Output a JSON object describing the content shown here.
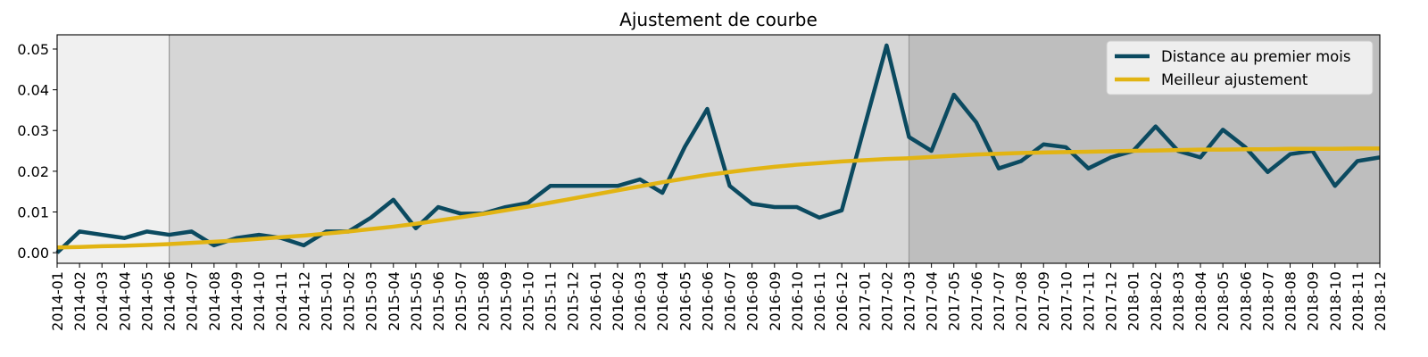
{
  "chart_data": {
    "type": "line",
    "title": "Ajustement de courbe",
    "xlabel": "",
    "ylabel": "",
    "categories": [
      "2014-01",
      "2014-02",
      "2014-03",
      "2014-04",
      "2014-05",
      "2014-06",
      "2014-07",
      "2014-08",
      "2014-09",
      "2014-10",
      "2014-11",
      "2014-12",
      "2015-01",
      "2015-02",
      "2015-03",
      "2015-04",
      "2015-05",
      "2015-06",
      "2015-07",
      "2015-08",
      "2015-09",
      "2015-10",
      "2015-11",
      "2015-12",
      "2016-01",
      "2016-02",
      "2016-03",
      "2016-04",
      "2016-05",
      "2016-06",
      "2016-07",
      "2016-08",
      "2016-09",
      "2016-10",
      "2016-11",
      "2016-12",
      "2017-01",
      "2017-02",
      "2017-03",
      "2017-04",
      "2017-05",
      "2017-06",
      "2017-07",
      "2017-08",
      "2017-09",
      "2017-10",
      "2017-11",
      "2017-12",
      "2018-01",
      "2018-02",
      "2018-03",
      "2018-04",
      "2018-05",
      "2018-06",
      "2018-07",
      "2018-08",
      "2018-09",
      "2018-10",
      "2018-11",
      "2018-12"
    ],
    "ylim": [
      -0.0026,
      0.0535
    ],
    "yticks": [
      0.0,
      0.01,
      0.02,
      0.03,
      0.04,
      0.05
    ],
    "ytick_labels": [
      "0.00",
      "0.01",
      "0.02",
      "0.03",
      "0.04",
      "0.05"
    ],
    "grid": false,
    "legend_position": "top-right",
    "regions": [
      {
        "start": "2014-01",
        "end": "2014-06",
        "color": "#f0f0f0"
      },
      {
        "start": "2014-06",
        "end": "2017-03",
        "color": "#d6d6d6"
      },
      {
        "start": "2017-03",
        "end": "2018-12",
        "color": "#bebebe"
      }
    ],
    "series": [
      {
        "name": "Distance au premier mois",
        "color": "#0b4a60",
        "values": [
          0.0,
          0.0052,
          0.0044,
          0.0036,
          0.0052,
          0.0044,
          0.0052,
          0.0018,
          0.0036,
          0.0044,
          0.0036,
          0.0018,
          0.0052,
          0.0052,
          0.0086,
          0.013,
          0.006,
          0.0112,
          0.0096,
          0.0096,
          0.0112,
          0.0122,
          0.0164,
          0.0164,
          0.0164,
          0.0164,
          0.018,
          0.0147,
          0.026,
          0.0353,
          0.0164,
          0.012,
          0.0112,
          0.0112,
          0.0086,
          0.0104,
          0.0307,
          0.0509,
          0.0284,
          0.025,
          0.0388,
          0.032,
          0.0207,
          0.0225,
          0.0266,
          0.0259,
          0.0207,
          0.0234,
          0.025,
          0.031,
          0.025,
          0.0234,
          0.0302,
          0.0259,
          0.0198,
          0.0242,
          0.025,
          0.0164,
          0.0225,
          0.0234
        ]
      },
      {
        "name": "Meilleur ajustement",
        "color": "#e2b413",
        "values": [
          0.0013,
          0.0014,
          0.0016,
          0.0017,
          0.0019,
          0.0021,
          0.0024,
          0.0027,
          0.003,
          0.0034,
          0.0038,
          0.0042,
          0.0047,
          0.0052,
          0.0058,
          0.0064,
          0.0071,
          0.0079,
          0.0087,
          0.0095,
          0.0104,
          0.0113,
          0.0123,
          0.0133,
          0.0143,
          0.0153,
          0.0163,
          0.0173,
          0.0182,
          0.0191,
          0.0198,
          0.0205,
          0.0211,
          0.0216,
          0.022,
          0.0224,
          0.0227,
          0.023,
          0.0232,
          0.0235,
          0.0238,
          0.0241,
          0.0243,
          0.0245,
          0.0246,
          0.0247,
          0.0248,
          0.0249,
          0.025,
          0.0251,
          0.0252,
          0.0253,
          0.0253,
          0.0254,
          0.0254,
          0.0255,
          0.0255,
          0.0255,
          0.0256,
          0.0256
        ]
      }
    ]
  }
}
